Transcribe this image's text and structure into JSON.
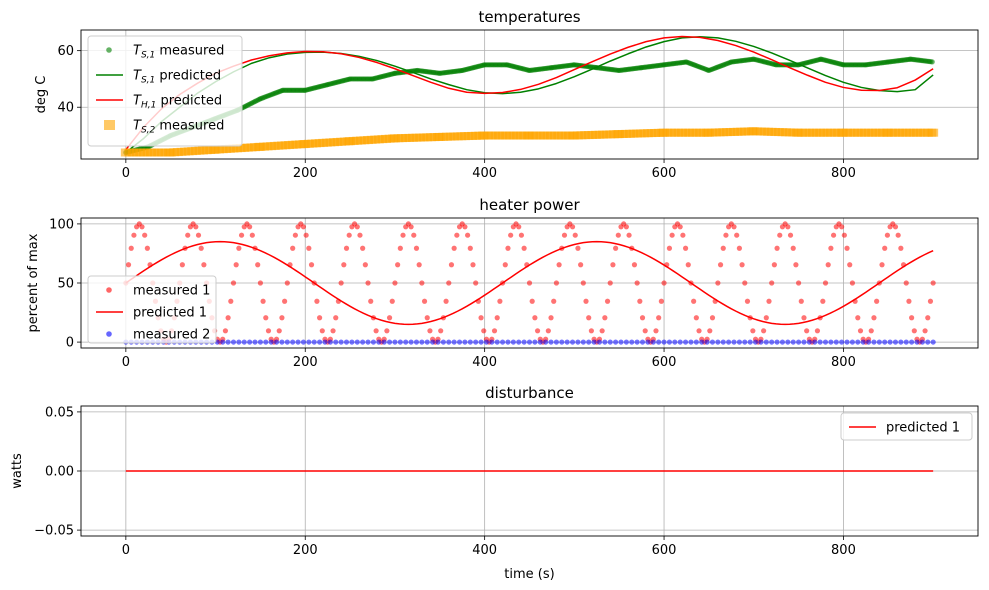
{
  "chart_data": [
    {
      "type": "line",
      "title": "temperatures",
      "xlabel": "",
      "ylabel": "deg C",
      "xlim": [
        -50,
        950
      ],
      "ylim": [
        21.7,
        67.3
      ],
      "xticks": [
        0,
        200,
        400,
        600,
        800
      ],
      "xtick_labels": [
        "0",
        "200",
        "400",
        "600",
        "800"
      ],
      "yticks": [
        40,
        60
      ],
      "ytick_labels": [
        "40",
        "60"
      ],
      "grid": true,
      "legend_position": "upper-left",
      "series": [
        {
          "name": "T_S,1 measured",
          "legend_main": "T",
          "legend_sub": "S,1",
          "legend_suffix": " measured",
          "style": "markers",
          "color": "#008000",
          "points": [
            [
              0,
              24
            ],
            [
              25,
              26
            ],
            [
              50,
              30
            ],
            [
              75,
              33
            ],
            [
              100,
              36
            ],
            [
              125,
              39
            ],
            [
              150,
              43
            ],
            [
              175,
              46
            ],
            [
              200,
              46
            ],
            [
              225,
              48
            ],
            [
              250,
              50
            ],
            [
              275,
              50
            ],
            [
              300,
              52
            ],
            [
              325,
              53
            ],
            [
              350,
              52
            ],
            [
              375,
              53
            ],
            [
              400,
              55
            ],
            [
              425,
              55
            ],
            [
              450,
              53
            ],
            [
              475,
              54
            ],
            [
              500,
              55
            ],
            [
              525,
              54
            ],
            [
              550,
              53
            ],
            [
              575,
              54
            ],
            [
              600,
              55
            ],
            [
              625,
              56
            ],
            [
              650,
              53
            ],
            [
              675,
              56
            ],
            [
              700,
              57
            ],
            [
              725,
              55
            ],
            [
              750,
              55
            ],
            [
              775,
              57
            ],
            [
              800,
              55
            ],
            [
              825,
              55
            ],
            [
              850,
              56
            ],
            [
              875,
              57
            ],
            [
              900,
              56
            ]
          ]
        },
        {
          "name": "T_S,1 predicted",
          "legend_main": "T",
          "legend_sub": "S,1",
          "legend_suffix": " predicted",
          "style": "line",
          "color": "#008000",
          "points": [
            [
              0,
              24
            ],
            [
              20,
              29
            ],
            [
              40,
              35
            ],
            [
              60,
              40
            ],
            [
              80,
              45
            ],
            [
              100,
              49
            ],
            [
              120,
              52.5
            ],
            [
              140,
              55.5
            ],
            [
              160,
              57.5
            ],
            [
              180,
              58.8
            ],
            [
              200,
              59.4
            ],
            [
              220,
              59.5
            ],
            [
              240,
              59
            ],
            [
              260,
              58
            ],
            [
              280,
              56.5
            ],
            [
              300,
              54.5
            ],
            [
              320,
              52.3
            ],
            [
              340,
              50
            ],
            [
              360,
              48
            ],
            [
              380,
              46.2
            ],
            [
              400,
              45.1
            ],
            [
              420,
              44.8
            ],
            [
              440,
              45.3
            ],
            [
              460,
              46.5
            ],
            [
              480,
              48.4
            ],
            [
              500,
              50.8
            ],
            [
              520,
              53.5
            ],
            [
              540,
              56.3
            ],
            [
              560,
              58.9
            ],
            [
              580,
              61.3
            ],
            [
              600,
              63.2
            ],
            [
              620,
              64.5
            ],
            [
              640,
              64.9
            ],
            [
              660,
              64.5
            ],
            [
              680,
              63.3
            ],
            [
              700,
              61.5
            ],
            [
              720,
              59.2
            ],
            [
              740,
              56.6
            ],
            [
              760,
              53.9
            ],
            [
              780,
              51.2
            ],
            [
              800,
              48.8
            ],
            [
              820,
              47
            ],
            [
              840,
              45.9
            ],
            [
              860,
              45.5
            ],
            [
              880,
              46.2
            ],
            [
              900,
              51.4
            ]
          ]
        },
        {
          "name": "T_H,1 predicted",
          "legend_main": "T",
          "legend_sub": "H,1",
          "legend_suffix": " predicted",
          "style": "line",
          "color": "#ff0000",
          "points": [
            [
              0,
              25
            ],
            [
              20,
              33
            ],
            [
              40,
              39.5
            ],
            [
              60,
              44.5
            ],
            [
              80,
              48.5
            ],
            [
              100,
              52
            ],
            [
              120,
              54.5
            ],
            [
              140,
              56.7
            ],
            [
              160,
              58.2
            ],
            [
              180,
              59.2
            ],
            [
              200,
              59.7
            ],
            [
              220,
              59.6
            ],
            [
              240,
              58.9
            ],
            [
              260,
              57.6
            ],
            [
              280,
              55.8
            ],
            [
              300,
              53.6
            ],
            [
              320,
              51.2
            ],
            [
              340,
              48.8
            ],
            [
              360,
              46.7
            ],
            [
              380,
              45.3
            ],
            [
              400,
              44.9
            ],
            [
              420,
              45.2
            ],
            [
              440,
              46.3
            ],
            [
              460,
              48.1
            ],
            [
              480,
              50.5
            ],
            [
              500,
              53.3
            ],
            [
              520,
              56.1
            ],
            [
              540,
              58.8
            ],
            [
              560,
              61.2
            ],
            [
              580,
              63.2
            ],
            [
              600,
              64.5
            ],
            [
              620,
              65
            ],
            [
              640,
              64.7
            ],
            [
              660,
              63.6
            ],
            [
              680,
              61.8
            ],
            [
              700,
              59.5
            ],
            [
              720,
              56.8
            ],
            [
              740,
              54
            ],
            [
              760,
              51.3
            ],
            [
              780,
              48.8
            ],
            [
              800,
              47
            ],
            [
              820,
              46
            ],
            [
              840,
              45.9
            ],
            [
              860,
              46.9
            ],
            [
              880,
              49.6
            ],
            [
              900,
              53.6
            ]
          ]
        },
        {
          "name": "T_S,2 measured",
          "legend_main": "T",
          "legend_sub": "S,2",
          "legend_suffix": " measured",
          "style": "squares",
          "color": "#ffa500",
          "points": [
            [
              0,
              24
            ],
            [
              50,
              24
            ],
            [
              100,
              25
            ],
            [
              150,
              26
            ],
            [
              200,
              27
            ],
            [
              250,
              28
            ],
            [
              300,
              29
            ],
            [
              350,
              29.5
            ],
            [
              400,
              30
            ],
            [
              450,
              30
            ],
            [
              500,
              30
            ],
            [
              550,
              30.5
            ],
            [
              600,
              31
            ],
            [
              650,
              31
            ],
            [
              700,
              31.5
            ],
            [
              750,
              31
            ],
            [
              800,
              31
            ],
            [
              850,
              31
            ],
            [
              900,
              31
            ]
          ]
        }
      ]
    },
    {
      "type": "line",
      "title": "heater power",
      "xlabel": "",
      "ylabel": "percent of max",
      "xlim": [
        -50,
        950
      ],
      "ylim": [
        -5,
        105
      ],
      "xticks": [
        0,
        200,
        400,
        600,
        800
      ],
      "xtick_labels": [
        "0",
        "200",
        "400",
        "600",
        "800"
      ],
      "yticks": [
        0,
        50,
        100
      ],
      "ytick_labels": [
        "0",
        "50",
        "100"
      ],
      "grid": true,
      "legend_position": "center-left",
      "series": [
        {
          "name": "measured 1",
          "style": "markers",
          "color": "#ff0000",
          "function": {
            "kind": "sine",
            "x_start": 0,
            "x_end": 900,
            "step": 3,
            "offset": 50,
            "amplitude": 50,
            "period": 60,
            "phase_x": 0
          }
        },
        {
          "name": "predicted 1",
          "style": "line",
          "color": "#ff0000",
          "function": {
            "kind": "sine",
            "x_start": 0,
            "x_end": 900,
            "step": 5,
            "offset": 50,
            "amplitude": 35,
            "period": 420,
            "phase_x": 0
          }
        },
        {
          "name": "measured 2",
          "style": "markers",
          "color": "#0000ff",
          "function": {
            "kind": "constant",
            "x_start": 0,
            "x_end": 900,
            "step": 6,
            "value": 0
          }
        }
      ]
    },
    {
      "type": "line",
      "title": "disturbance",
      "xlabel": "time (s)",
      "ylabel": "watts",
      "xlim": [
        -50,
        950
      ],
      "ylim": [
        -0.055,
        0.055
      ],
      "xticks": [
        0,
        200,
        400,
        600,
        800
      ],
      "xtick_labels": [
        "0",
        "200",
        "400",
        "600",
        "800"
      ],
      "yticks": [
        -0.05,
        0,
        0.05
      ],
      "ytick_labels": [
        "−0.05",
        "0.00",
        "0.05"
      ],
      "grid": true,
      "legend_position": "upper-right",
      "series": [
        {
          "name": "predicted 1",
          "style": "line",
          "color": "#ff0000",
          "points": [
            [
              0,
              0
            ],
            [
              900,
              0
            ]
          ]
        }
      ]
    }
  ]
}
